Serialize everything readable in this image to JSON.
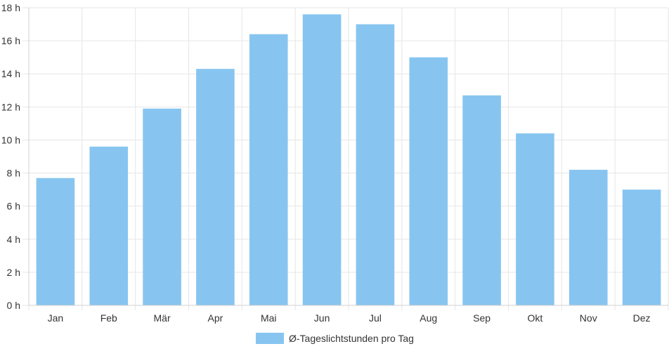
{
  "chart_data": {
    "type": "bar",
    "categories": [
      "Jan",
      "Feb",
      "Mär",
      "Apr",
      "Mai",
      "Jun",
      "Jul",
      "Aug",
      "Sep",
      "Okt",
      "Nov",
      "Dez"
    ],
    "series": [
      {
        "name": "Ø-Tageslichtstunden pro Tag",
        "values": [
          7.7,
          9.6,
          11.9,
          14.3,
          16.4,
          17.6,
          17.0,
          15.0,
          12.7,
          10.4,
          8.2,
          7.0
        ],
        "color": "#87c5f0"
      }
    ],
    "ylim": [
      0,
      18
    ],
    "yticks": [
      0,
      2,
      4,
      6,
      8,
      10,
      12,
      14,
      16,
      18
    ],
    "ytick_suffix": " h",
    "grid": true,
    "legend_position": "bottom"
  }
}
